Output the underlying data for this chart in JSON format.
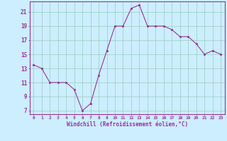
{
  "x": [
    0,
    1,
    2,
    3,
    4,
    5,
    6,
    7,
    8,
    9,
    10,
    11,
    12,
    13,
    14,
    15,
    16,
    17,
    18,
    19,
    20,
    21,
    22,
    23
  ],
  "y": [
    13.5,
    13.0,
    11.0,
    11.0,
    11.0,
    10.0,
    7.0,
    8.0,
    12.0,
    15.5,
    19.0,
    19.0,
    21.5,
    22.0,
    19.0,
    19.0,
    19.0,
    18.5,
    17.5,
    17.5,
    16.5,
    15.0,
    15.5,
    15.0
  ],
  "line_color": "#993399",
  "marker_color": "#993399",
  "bg_color": "#cceeff",
  "grid_color": "#99ccbb",
  "tick_label_color": "#993399",
  "xlabel": "Windchill (Refroidissement éolien,°C)",
  "ylabel_ticks": [
    7,
    9,
    11,
    13,
    15,
    17,
    19,
    21
  ],
  "xlim": [
    -0.5,
    23.5
  ],
  "ylim": [
    6.5,
    22.5
  ],
  "xticks": [
    0,
    1,
    2,
    3,
    4,
    5,
    6,
    7,
    8,
    9,
    10,
    11,
    12,
    13,
    14,
    15,
    16,
    17,
    18,
    19,
    20,
    21,
    22,
    23
  ]
}
